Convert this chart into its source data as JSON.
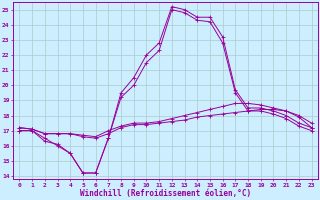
{
  "xlabel": "Windchill (Refroidissement éolien,°C)",
  "background_color": "#cceeff",
  "grid_color": "#aacccc",
  "line_color": "#990099",
  "x": [
    0,
    1,
    2,
    3,
    4,
    5,
    6,
    7,
    8,
    9,
    10,
    11,
    12,
    13,
    14,
    15,
    16,
    17,
    18,
    19,
    20,
    21,
    22,
    23
  ],
  "y_main": [
    17.0,
    17.0,
    16.5,
    16.0,
    15.5,
    14.2,
    14.2,
    16.5,
    19.5,
    20.5,
    22.0,
    22.8,
    25.2,
    25.0,
    24.5,
    24.5,
    23.2,
    19.7,
    18.5,
    18.5,
    18.3,
    18.0,
    17.5,
    17.2
  ],
  "y_flat1": [
    17.2,
    17.1,
    16.8,
    16.8,
    16.8,
    16.6,
    16.5,
    16.8,
    17.2,
    17.4,
    17.4,
    17.5,
    17.6,
    17.7,
    17.9,
    18.0,
    18.1,
    18.2,
    18.3,
    18.4,
    18.4,
    18.3,
    17.9,
    17.2
  ],
  "y_flat2": [
    17.2,
    17.1,
    16.8,
    16.8,
    16.8,
    16.7,
    16.6,
    17.0,
    17.3,
    17.5,
    17.5,
    17.6,
    17.8,
    18.0,
    18.2,
    18.4,
    18.6,
    18.8,
    18.8,
    18.7,
    18.5,
    18.3,
    18.0,
    17.5
  ],
  "y_dip": [
    17.0,
    17.0,
    16.3,
    16.1,
    15.5,
    14.2,
    14.2,
    16.5,
    19.2,
    20.0,
    21.5,
    22.3,
    25.0,
    24.8,
    24.3,
    24.2,
    22.8,
    19.5,
    18.3,
    18.3,
    18.1,
    17.8,
    17.3,
    17.0
  ],
  "ylim": [
    13.8,
    25.5
  ],
  "yticks": [
    14,
    15,
    16,
    17,
    18,
    19,
    20,
    21,
    22,
    23,
    24,
    25
  ],
  "xtick_labels": [
    "0",
    "1",
    "2",
    "3",
    "4",
    "5",
    "6",
    "7",
    "8",
    "9",
    "10",
    "11",
    "12",
    "13",
    "14",
    "15",
    "16",
    "17",
    "18",
    "19",
    "20",
    "21",
    "22",
    "23"
  ]
}
